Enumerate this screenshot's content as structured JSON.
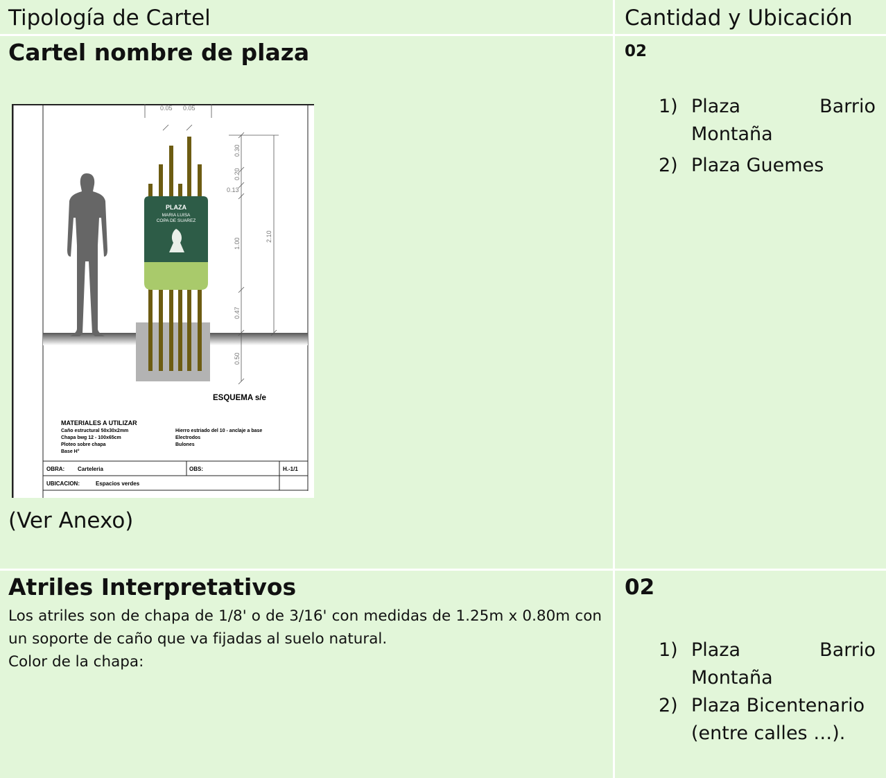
{
  "table": {
    "headers": [
      "Tipología de Cartel",
      "Cantidad y Ubicación"
    ],
    "rows": [
      {
        "title": "Cartel nombre de plaza",
        "quantity": "02",
        "locations": [
          {
            "marker": "1)",
            "text": "Plaza Barrio Montaña"
          },
          {
            "marker": "2)",
            "text": "Plaza Guemes"
          }
        ],
        "note": "(Ver Anexo)",
        "drawing": {
          "dimensions": [
            "0.05",
            "0.05",
            "0.30",
            "0.20",
            "0.13",
            "1.00",
            "2.10",
            "0.47",
            "0.50"
          ],
          "sign": [
            "PLAZA",
            "MARIA LUISA",
            "COPA DE SUAREZ"
          ],
          "caption": "ESQUEMA s/e",
          "materials_title": "MATERIALES A UTILIZAR",
          "materials": [
            "Caño estructural  50x30x2mm",
            "Chapa bwg 12 - 100x65cm",
            "Ploteo sobre chapa",
            "Base H°"
          ],
          "materials_right": [
            "Hierro estriado del 10 - anclaje a base",
            "Electrodos",
            "Bulones"
          ],
          "block": {
            "obra_label": "OBRA:",
            "obra": "Carteleria",
            "obs_label": "OBS:",
            "sheet": "H.-1/1",
            "ubicacion_label": "UBICACION:",
            "ubicacion": "Espacios verdes"
          }
        }
      },
      {
        "title": "Atriles Interpretativos",
        "quantity": "02",
        "description": [
          "Los atriles son de chapa de 1/8' o de 3/16' con medidas de 1.25m x 0.80m con un soporte de caño que va fijadas al suelo natural.",
          "Color de la chapa:"
        ],
        "locations": [
          {
            "marker": "1)",
            "text": "Plaza Barrio Montaña"
          },
          {
            "marker": "2)",
            "text": "Plaza Bicentenario (entre calles …)."
          }
        ]
      }
    ]
  }
}
